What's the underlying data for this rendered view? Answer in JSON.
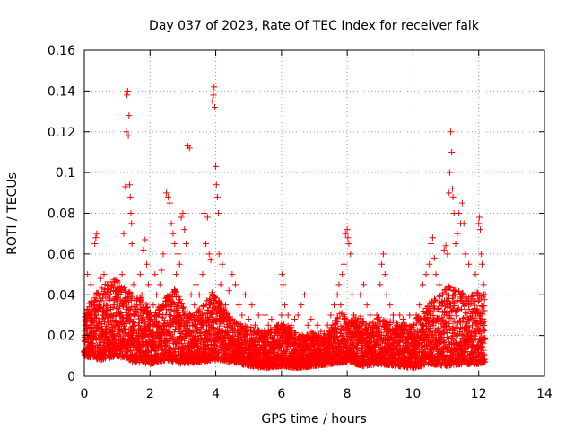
{
  "chart_data": {
    "type": "scatter",
    "title": "Day 037 of 2023, Rate Of TEC Index for receiver falk",
    "xlabel": "GPS time / hours",
    "ylabel": "ROTI / TECUs",
    "xlim": [
      0,
      14
    ],
    "ylim": [
      0,
      0.16
    ],
    "x_ticks": [
      0,
      2,
      4,
      6,
      8,
      10,
      12,
      14
    ],
    "x_tick_labels": [
      "0",
      "2",
      "4",
      "6",
      "8",
      "10",
      "12",
      "14"
    ],
    "y_ticks": [
      0,
      0.02,
      0.04,
      0.06,
      0.08,
      0.1,
      0.12,
      0.14,
      0.16
    ],
    "y_tick_labels": [
      "0",
      "0.02",
      "0.04",
      "0.06",
      "0.08",
      "0.1",
      "0.12",
      "0.14",
      "0.16"
    ],
    "grid": true,
    "marker": "plus",
    "marker_color": "#ff0000",
    "points": [
      [
        0.05,
        0.012
      ],
      [
        0.1,
        0.05
      ],
      [
        0.12,
        0.03
      ],
      [
        0.15,
        0.02
      ],
      [
        0.2,
        0.045
      ],
      [
        0.25,
        0.018
      ],
      [
        0.3,
        0.025
      ],
      [
        0.32,
        0.065
      ],
      [
        0.35,
        0.068
      ],
      [
        0.38,
        0.07
      ],
      [
        0.4,
        0.015
      ],
      [
        0.45,
        0.035
      ],
      [
        0.5,
        0.048
      ],
      [
        0.55,
        0.022
      ],
      [
        0.6,
        0.05
      ],
      [
        0.65,
        0.03
      ],
      [
        0.7,
        0.018
      ],
      [
        0.75,
        0.04
      ],
      [
        0.8,
        0.027
      ],
      [
        0.85,
        0.045
      ],
      [
        0.9,
        0.02
      ],
      [
        0.95,
        0.038
      ],
      [
        1.0,
        0.047
      ],
      [
        1.05,
        0.015
      ],
      [
        1.1,
        0.03
      ],
      [
        1.15,
        0.05
      ],
      [
        1.2,
        0.07
      ],
      [
        1.25,
        0.093
      ],
      [
        1.28,
        0.12
      ],
      [
        1.3,
        0.138
      ],
      [
        1.32,
        0.14
      ],
      [
        1.34,
        0.118
      ],
      [
        1.36,
        0.128
      ],
      [
        1.38,
        0.094
      ],
      [
        1.4,
        0.088
      ],
      [
        1.42,
        0.08
      ],
      [
        1.44,
        0.075
      ],
      [
        1.45,
        0.065
      ],
      [
        1.5,
        0.045
      ],
      [
        1.55,
        0.03
      ],
      [
        1.6,
        0.035
      ],
      [
        1.65,
        0.025
      ],
      [
        1.7,
        0.05
      ],
      [
        1.75,
        0.04
      ],
      [
        1.8,
        0.062
      ],
      [
        1.85,
        0.067
      ],
      [
        1.9,
        0.055
      ],
      [
        1.95,
        0.045
      ],
      [
        2.0,
        0.03
      ],
      [
        2.05,
        0.02
      ],
      [
        2.1,
        0.035
      ],
      [
        2.15,
        0.05
      ],
      [
        2.2,
        0.04
      ],
      [
        2.25,
        0.025
      ],
      [
        2.3,
        0.045
      ],
      [
        2.35,
        0.052
      ],
      [
        2.4,
        0.06
      ],
      [
        2.5,
        0.09
      ],
      [
        2.55,
        0.088
      ],
      [
        2.6,
        0.085
      ],
      [
        2.65,
        0.075
      ],
      [
        2.7,
        0.07
      ],
      [
        2.75,
        0.065
      ],
      [
        2.8,
        0.05
      ],
      [
        2.85,
        0.06
      ],
      [
        2.9,
        0.055
      ],
      [
        2.95,
        0.078
      ],
      [
        3.0,
        0.08
      ],
      [
        3.05,
        0.072
      ],
      [
        3.1,
        0.065
      ],
      [
        3.15,
        0.113
      ],
      [
        3.2,
        0.112
      ],
      [
        3.25,
        0.04
      ],
      [
        3.3,
        0.03
      ],
      [
        3.35,
        0.035
      ],
      [
        3.4,
        0.045
      ],
      [
        3.5,
        0.04
      ],
      [
        3.6,
        0.05
      ],
      [
        3.65,
        0.08
      ],
      [
        3.7,
        0.065
      ],
      [
        3.75,
        0.078
      ],
      [
        3.8,
        0.06
      ],
      [
        3.85,
        0.057
      ],
      [
        3.9,
        0.135
      ],
      [
        3.93,
        0.138
      ],
      [
        3.95,
        0.142
      ],
      [
        3.97,
        0.132
      ],
      [
        4.0,
        0.103
      ],
      [
        4.02,
        0.094
      ],
      [
        4.05,
        0.088
      ],
      [
        4.08,
        0.08
      ],
      [
        4.1,
        0.06
      ],
      [
        4.15,
        0.045
      ],
      [
        4.2,
        0.055
      ],
      [
        4.3,
        0.035
      ],
      [
        4.4,
        0.042
      ],
      [
        4.5,
        0.05
      ],
      [
        4.6,
        0.045
      ],
      [
        4.7,
        0.035
      ],
      [
        4.8,
        0.03
      ],
      [
        4.9,
        0.04
      ],
      [
        5.0,
        0.028
      ],
      [
        5.1,
        0.035
      ],
      [
        5.2,
        0.025
      ],
      [
        5.3,
        0.03
      ],
      [
        5.4,
        0.022
      ],
      [
        5.5,
        0.03
      ],
      [
        5.6,
        0.025
      ],
      [
        5.7,
        0.028
      ],
      [
        5.8,
        0.02
      ],
      [
        5.9,
        0.025
      ],
      [
        6.0,
        0.03
      ],
      [
        6.02,
        0.05
      ],
      [
        6.05,
        0.045
      ],
      [
        6.1,
        0.035
      ],
      [
        6.2,
        0.03
      ],
      [
        6.3,
        0.025
      ],
      [
        6.4,
        0.028
      ],
      [
        6.5,
        0.03
      ],
      [
        6.6,
        0.035
      ],
      [
        6.7,
        0.04
      ],
      [
        6.8,
        0.025
      ],
      [
        6.9,
        0.028
      ],
      [
        7.0,
        0.02
      ],
      [
        7.1,
        0.025
      ],
      [
        7.2,
        0.022
      ],
      [
        7.3,
        0.018
      ],
      [
        7.4,
        0.025
      ],
      [
        7.5,
        0.03
      ],
      [
        7.6,
        0.035
      ],
      [
        7.7,
        0.04
      ],
      [
        7.75,
        0.045
      ],
      [
        7.8,
        0.035
      ],
      [
        7.85,
        0.05
      ],
      [
        7.9,
        0.055
      ],
      [
        7.95,
        0.07
      ],
      [
        8.0,
        0.072
      ],
      [
        8.02,
        0.068
      ],
      [
        8.05,
        0.065
      ],
      [
        8.1,
        0.06
      ],
      [
        8.15,
        0.04
      ],
      [
        8.2,
        0.03
      ],
      [
        8.3,
        0.025
      ],
      [
        8.4,
        0.04
      ],
      [
        8.5,
        0.045
      ],
      [
        8.6,
        0.035
      ],
      [
        8.7,
        0.03
      ],
      [
        8.8,
        0.025
      ],
      [
        8.9,
        0.03
      ],
      [
        9.0,
        0.045
      ],
      [
        9.05,
        0.055
      ],
      [
        9.1,
        0.06
      ],
      [
        9.15,
        0.05
      ],
      [
        9.2,
        0.04
      ],
      [
        9.3,
        0.035
      ],
      [
        9.4,
        0.03
      ],
      [
        9.5,
        0.025
      ],
      [
        9.6,
        0.03
      ],
      [
        9.7,
        0.028
      ],
      [
        9.8,
        0.025
      ],
      [
        9.9,
        0.03
      ],
      [
        10.0,
        0.025
      ],
      [
        10.1,
        0.03
      ],
      [
        10.2,
        0.035
      ],
      [
        10.3,
        0.045
      ],
      [
        10.4,
        0.05
      ],
      [
        10.5,
        0.055
      ],
      [
        10.55,
        0.065
      ],
      [
        10.6,
        0.068
      ],
      [
        10.65,
        0.058
      ],
      [
        10.7,
        0.05
      ],
      [
        10.8,
        0.045
      ],
      [
        10.9,
        0.04
      ],
      [
        10.95,
        0.062
      ],
      [
        11.0,
        0.064
      ],
      [
        11.05,
        0.06
      ],
      [
        11.1,
        0.09
      ],
      [
        11.12,
        0.1
      ],
      [
        11.15,
        0.12
      ],
      [
        11.18,
        0.11
      ],
      [
        11.2,
        0.092
      ],
      [
        11.22,
        0.088
      ],
      [
        11.25,
        0.08
      ],
      [
        11.3,
        0.065
      ],
      [
        11.35,
        0.07
      ],
      [
        11.4,
        0.08
      ],
      [
        11.45,
        0.075
      ],
      [
        11.5,
        0.085
      ],
      [
        11.55,
        0.075
      ],
      [
        11.6,
        0.06
      ],
      [
        11.7,
        0.055
      ],
      [
        11.8,
        0.04
      ],
      [
        11.9,
        0.05
      ],
      [
        12.0,
        0.075
      ],
      [
        12.02,
        0.078
      ],
      [
        12.05,
        0.072
      ],
      [
        12.08,
        0.06
      ],
      [
        12.1,
        0.055
      ],
      [
        12.15,
        0.045
      ],
      [
        12.2,
        0.04
      ]
    ],
    "band_low": [
      [
        0.0,
        0.01
      ],
      [
        0.5,
        0.008
      ],
      [
        1.0,
        0.01
      ],
      [
        1.5,
        0.007
      ],
      [
        2.0,
        0.006
      ],
      [
        2.5,
        0.008
      ],
      [
        3.0,
        0.006
      ],
      [
        3.5,
        0.007
      ],
      [
        4.0,
        0.008
      ],
      [
        4.5,
        0.007
      ],
      [
        5.0,
        0.005
      ],
      [
        5.5,
        0.004
      ],
      [
        6.0,
        0.005
      ],
      [
        6.5,
        0.004
      ],
      [
        7.0,
        0.005
      ],
      [
        7.5,
        0.006
      ],
      [
        8.0,
        0.007
      ],
      [
        8.5,
        0.005
      ],
      [
        9.0,
        0.006
      ],
      [
        9.5,
        0.005
      ],
      [
        10.0,
        0.004
      ],
      [
        10.5,
        0.006
      ],
      [
        11.0,
        0.005
      ],
      [
        11.5,
        0.006
      ],
      [
        12.0,
        0.006
      ],
      [
        12.2,
        0.007
      ]
    ],
    "band_high": [
      [
        0.0,
        0.032
      ],
      [
        0.3,
        0.04
      ],
      [
        0.6,
        0.045
      ],
      [
        0.9,
        0.048
      ],
      [
        1.2,
        0.045
      ],
      [
        1.5,
        0.04
      ],
      [
        1.8,
        0.038
      ],
      [
        2.1,
        0.03
      ],
      [
        2.4,
        0.038
      ],
      [
        2.7,
        0.045
      ],
      [
        3.0,
        0.035
      ],
      [
        3.3,
        0.03
      ],
      [
        3.6,
        0.035
      ],
      [
        3.9,
        0.042
      ],
      [
        4.2,
        0.035
      ],
      [
        4.5,
        0.028
      ],
      [
        4.8,
        0.026
      ],
      [
        5.1,
        0.024
      ],
      [
        5.4,
        0.022
      ],
      [
        5.7,
        0.024
      ],
      [
        6.0,
        0.026
      ],
      [
        6.3,
        0.024
      ],
      [
        6.6,
        0.02
      ],
      [
        6.9,
        0.022
      ],
      [
        7.2,
        0.02
      ],
      [
        7.5,
        0.024
      ],
      [
        7.8,
        0.032
      ],
      [
        8.1,
        0.028
      ],
      [
        8.4,
        0.03
      ],
      [
        8.7,
        0.026
      ],
      [
        9.0,
        0.03
      ],
      [
        9.3,
        0.028
      ],
      [
        9.6,
        0.026
      ],
      [
        9.9,
        0.025
      ],
      [
        10.2,
        0.03
      ],
      [
        10.5,
        0.036
      ],
      [
        10.8,
        0.04
      ],
      [
        11.1,
        0.045
      ],
      [
        11.4,
        0.042
      ],
      [
        11.7,
        0.04
      ],
      [
        12.0,
        0.042
      ],
      [
        12.2,
        0.04
      ]
    ]
  }
}
